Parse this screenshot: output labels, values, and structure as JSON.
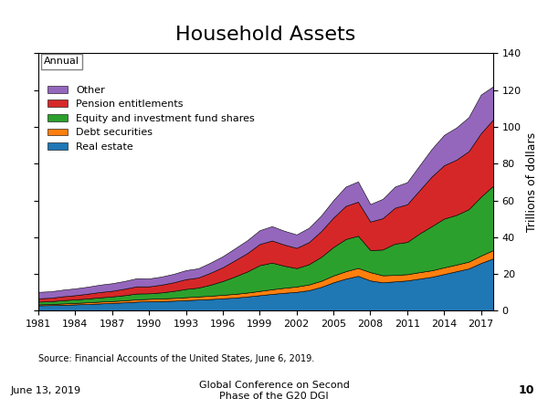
{
  "chart_data": {
    "type": "area",
    "stacked": true,
    "title": "Household Assets",
    "ylabel": "Trillions of dollars",
    "annotation": "Annual",
    "source": "Source: Financial Accounts of the United States, June 6, 2019.",
    "footer": {
      "left": "June 13, 2019",
      "center": "Global Conference on Second\nPhase of the G20 DGI",
      "right": "10"
    },
    "x": [
      1981,
      1982,
      1983,
      1984,
      1985,
      1986,
      1987,
      1988,
      1989,
      1990,
      1991,
      1992,
      1993,
      1994,
      1995,
      1996,
      1997,
      1998,
      1999,
      2000,
      2001,
      2002,
      2003,
      2004,
      2005,
      2006,
      2007,
      2008,
      2009,
      2010,
      2011,
      2012,
      2013,
      2014,
      2015,
      2016,
      2017,
      2018
    ],
    "series": [
      {
        "name": "Real estate",
        "values": [
          3.0,
          3.1,
          3.3,
          3.5,
          3.7,
          4.0,
          4.3,
          4.6,
          5.0,
          5.2,
          5.3,
          5.5,
          5.8,
          6.1,
          6.4,
          6.8,
          7.2,
          7.8,
          8.5,
          9.2,
          9.8,
          10.3,
          11.2,
          13.0,
          15.5,
          17.5,
          19.0,
          16.5,
          15.5,
          16.0,
          16.5,
          17.5,
          18.5,
          20.0,
          21.5,
          23.0,
          26.0,
          28.5
        ]
      },
      {
        "name": "Debt securities",
        "values": [
          0.5,
          0.6,
          0.7,
          0.8,
          0.9,
          1.0,
          1.0,
          1.1,
          1.2,
          1.3,
          1.4,
          1.5,
          1.6,
          1.7,
          1.8,
          1.9,
          2.0,
          2.1,
          2.3,
          2.5,
          2.7,
          2.9,
          3.1,
          3.3,
          3.7,
          4.0,
          4.3,
          4.5,
          3.8,
          3.5,
          3.4,
          3.5,
          3.5,
          3.6,
          3.6,
          3.7,
          4.0,
          4.5
        ]
      },
      {
        "name": "Equity and investment fund shares",
        "values": [
          1.5,
          1.5,
          1.8,
          1.9,
          2.1,
          2.3,
          2.5,
          2.8,
          3.2,
          3.0,
          3.3,
          3.8,
          4.5,
          4.8,
          6.0,
          7.5,
          9.5,
          11.5,
          14.0,
          14.5,
          12.0,
          10.0,
          11.0,
          13.0,
          15.5,
          17.5,
          17.5,
          12.0,
          14.0,
          17.0,
          17.5,
          21.0,
          24.0,
          26.5,
          27.0,
          28.5,
          32.0,
          35.0
        ]
      },
      {
        "name": "Pension entitlements",
        "values": [
          1.8,
          1.9,
          2.1,
          2.3,
          2.6,
          2.9,
          3.1,
          3.5,
          3.9,
          3.8,
          4.2,
          4.7,
          5.3,
          5.5,
          6.5,
          7.5,
          8.8,
          10.0,
          11.5,
          12.0,
          11.5,
          11.0,
          12.0,
          14.0,
          16.0,
          18.0,
          18.5,
          15.5,
          17.0,
          19.5,
          20.5,
          23.5,
          27.0,
          29.0,
          30.0,
          31.5,
          34.5,
          36.0
        ]
      },
      {
        "name": "Other",
        "values": [
          3.5,
          3.5,
          3.6,
          3.7,
          3.8,
          4.0,
          4.1,
          4.2,
          4.4,
          4.3,
          4.4,
          4.6,
          4.9,
          5.0,
          5.5,
          6.0,
          6.5,
          7.0,
          7.5,
          7.8,
          7.5,
          7.3,
          7.8,
          8.5,
          9.5,
          10.5,
          11.0,
          9.5,
          10.5,
          11.5,
          12.0,
          13.5,
          15.0,
          16.5,
          17.5,
          18.5,
          21.0,
          18.0
        ]
      }
    ],
    "xlim": [
      1981,
      2018
    ],
    "xticks": [
      1981,
      1984,
      1987,
      1990,
      1993,
      1996,
      1999,
      2002,
      2005,
      2008,
      2011,
      2014,
      2017
    ],
    "ylim": [
      0,
      140
    ],
    "yticks": [
      0,
      20,
      40,
      60,
      80,
      100,
      120,
      140
    ],
    "grid": false,
    "legend": "upper left"
  }
}
